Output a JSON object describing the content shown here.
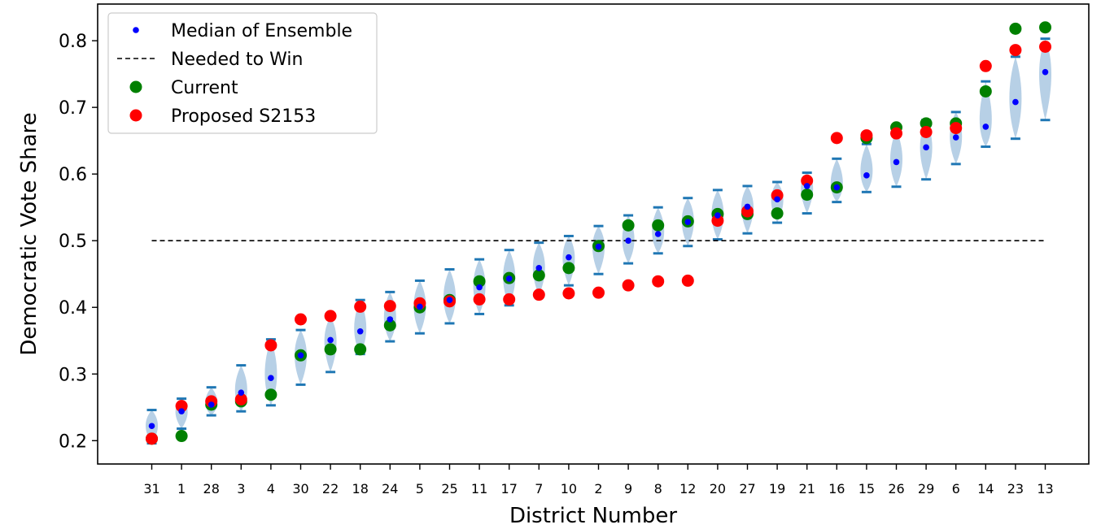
{
  "chart_data": {
    "type": "scatter",
    "xlabel": "District Number",
    "ylabel": "Democratic Vote Share",
    "ylim": [
      0.165,
      0.855
    ],
    "yticks": [
      0.2,
      0.3,
      0.4,
      0.5,
      0.6,
      0.7,
      0.8
    ],
    "grid": false,
    "legend_position": "top-left",
    "needed_to_win": 0.5,
    "categories": [
      "31",
      "1",
      "28",
      "3",
      "4",
      "30",
      "22",
      "18",
      "24",
      "5",
      "25",
      "11",
      "17",
      "7",
      "10",
      "2",
      "9",
      "8",
      "12",
      "20",
      "27",
      "19",
      "21",
      "16",
      "15",
      "26",
      "29",
      "6",
      "14",
      "23",
      "13"
    ],
    "series": [
      {
        "name": "Median of Ensemble",
        "color": "#0000ff",
        "values": [
          0.222,
          0.244,
          0.254,
          0.272,
          0.294,
          0.328,
          0.351,
          0.364,
          0.382,
          0.401,
          0.411,
          0.43,
          0.443,
          0.459,
          0.475,
          0.491,
          0.5,
          0.51,
          0.528,
          0.538,
          0.551,
          0.562,
          0.582,
          0.58,
          0.598,
          0.618,
          0.64,
          0.655,
          0.671,
          0.708,
          0.753
        ]
      },
      {
        "name": "Current",
        "color": "#008000",
        "values": [
          0.203,
          0.207,
          0.254,
          0.259,
          0.269,
          0.328,
          0.337,
          0.337,
          0.373,
          0.4,
          0.411,
          0.439,
          0.444,
          0.448,
          0.459,
          0.492,
          0.523,
          0.523,
          0.529,
          0.54,
          0.54,
          0.541,
          0.569,
          0.58,
          0.654,
          0.67,
          0.676,
          0.676,
          0.724,
          0.818,
          0.82
        ]
      },
      {
        "name": "Proposed S2153",
        "color": "#ff0000",
        "values": [
          0.203,
          0.252,
          0.259,
          0.262,
          0.343,
          0.382,
          0.387,
          0.401,
          0.402,
          0.406,
          0.409,
          0.412,
          0.412,
          0.419,
          0.421,
          0.422,
          0.433,
          0.439,
          0.44,
          0.53,
          0.544,
          0.568,
          0.59,
          0.654,
          0.658,
          0.661,
          0.663,
          0.669,
          0.762,
          0.786,
          0.791
        ]
      }
    ],
    "ensemble_range": {
      "color": "#1f77b4",
      "fill": "#b7d0e6",
      "low": [
        0.196,
        0.218,
        0.238,
        0.244,
        0.253,
        0.284,
        0.303,
        0.33,
        0.349,
        0.361,
        0.376,
        0.39,
        0.403,
        0.418,
        0.433,
        0.45,
        0.466,
        0.481,
        0.492,
        0.502,
        0.511,
        0.527,
        0.541,
        0.558,
        0.573,
        0.581,
        0.592,
        0.615,
        0.641,
        0.653,
        0.681
      ],
      "high": [
        0.246,
        0.263,
        0.28,
        0.313,
        0.352,
        0.366,
        0.386,
        0.411,
        0.423,
        0.44,
        0.457,
        0.472,
        0.486,
        0.497,
        0.507,
        0.522,
        0.538,
        0.55,
        0.564,
        0.576,
        0.582,
        0.588,
        0.602,
        0.623,
        0.645,
        0.666,
        0.681,
        0.693,
        0.739,
        0.776,
        0.803
      ]
    },
    "legend": [
      {
        "label": "Median of Ensemble",
        "marker": "small-dot",
        "color": "#0000ff"
      },
      {
        "label": "Needed to Win",
        "marker": "dashed-line",
        "color": "#000000"
      },
      {
        "label": "Current",
        "marker": "dot",
        "color": "#008000"
      },
      {
        "label": "Proposed S2153",
        "marker": "dot",
        "color": "#ff0000"
      }
    ]
  }
}
